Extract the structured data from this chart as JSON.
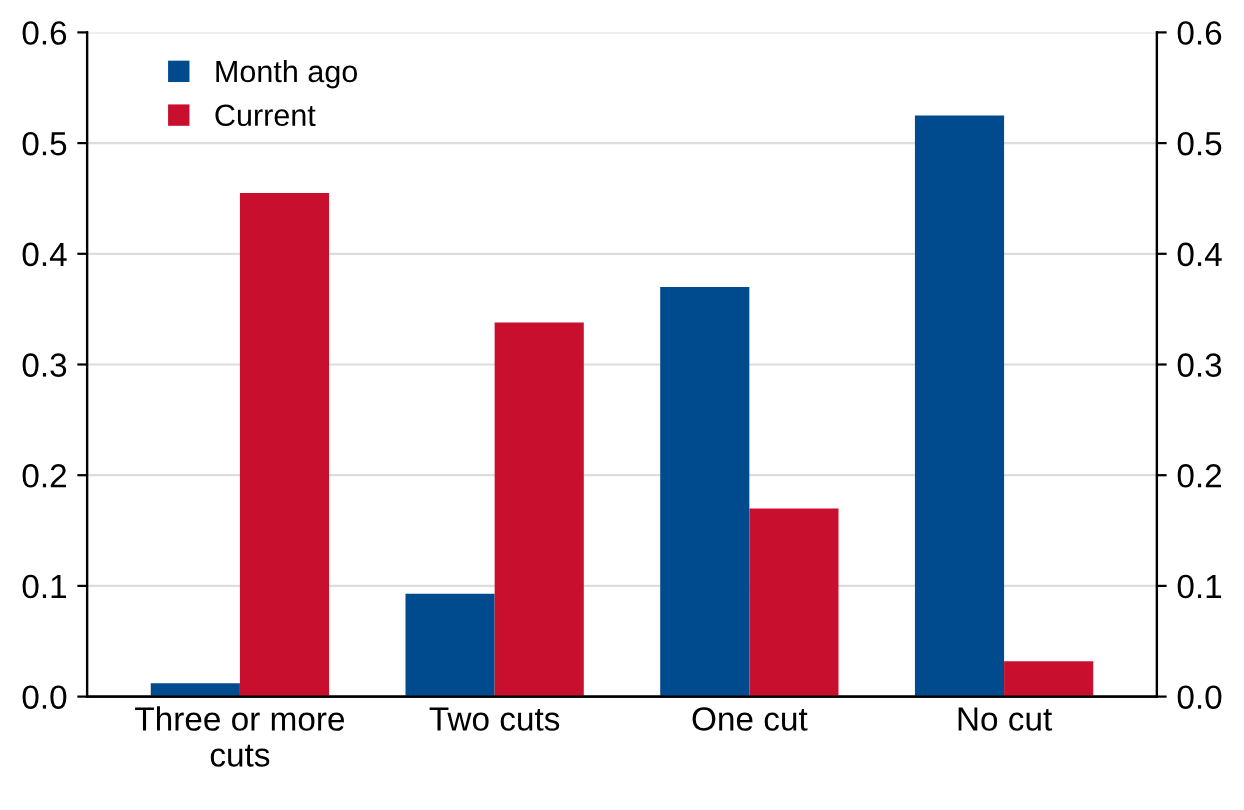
{
  "chart_data": {
    "type": "bar",
    "categories": [
      "Three or more\ncuts",
      "Two cuts",
      "One cut",
      "No cut"
    ],
    "series": [
      {
        "name": "Month ago",
        "color": "#004b8d",
        "values": [
          0.012,
          0.093,
          0.37,
          0.525
        ]
      },
      {
        "name": "Current",
        "color": "#c8102e",
        "values": [
          0.455,
          0.338,
          0.17,
          0.032
        ]
      }
    ],
    "ylim": [
      0,
      0.6
    ],
    "yticks": [
      {
        "value": 0,
        "label": "0.0"
      },
      0.1,
      0.2,
      0.3,
      0.4,
      0.5,
      0.6
    ],
    "y2lim": [
      0,
      0.6
    ],
    "y2ticks": [
      {
        "value": 0,
        "label": "0.0"
      },
      0.1,
      0.2,
      0.3,
      0.4,
      0.5,
      0.6
    ],
    "grid": "y",
    "legend": "top left"
  }
}
